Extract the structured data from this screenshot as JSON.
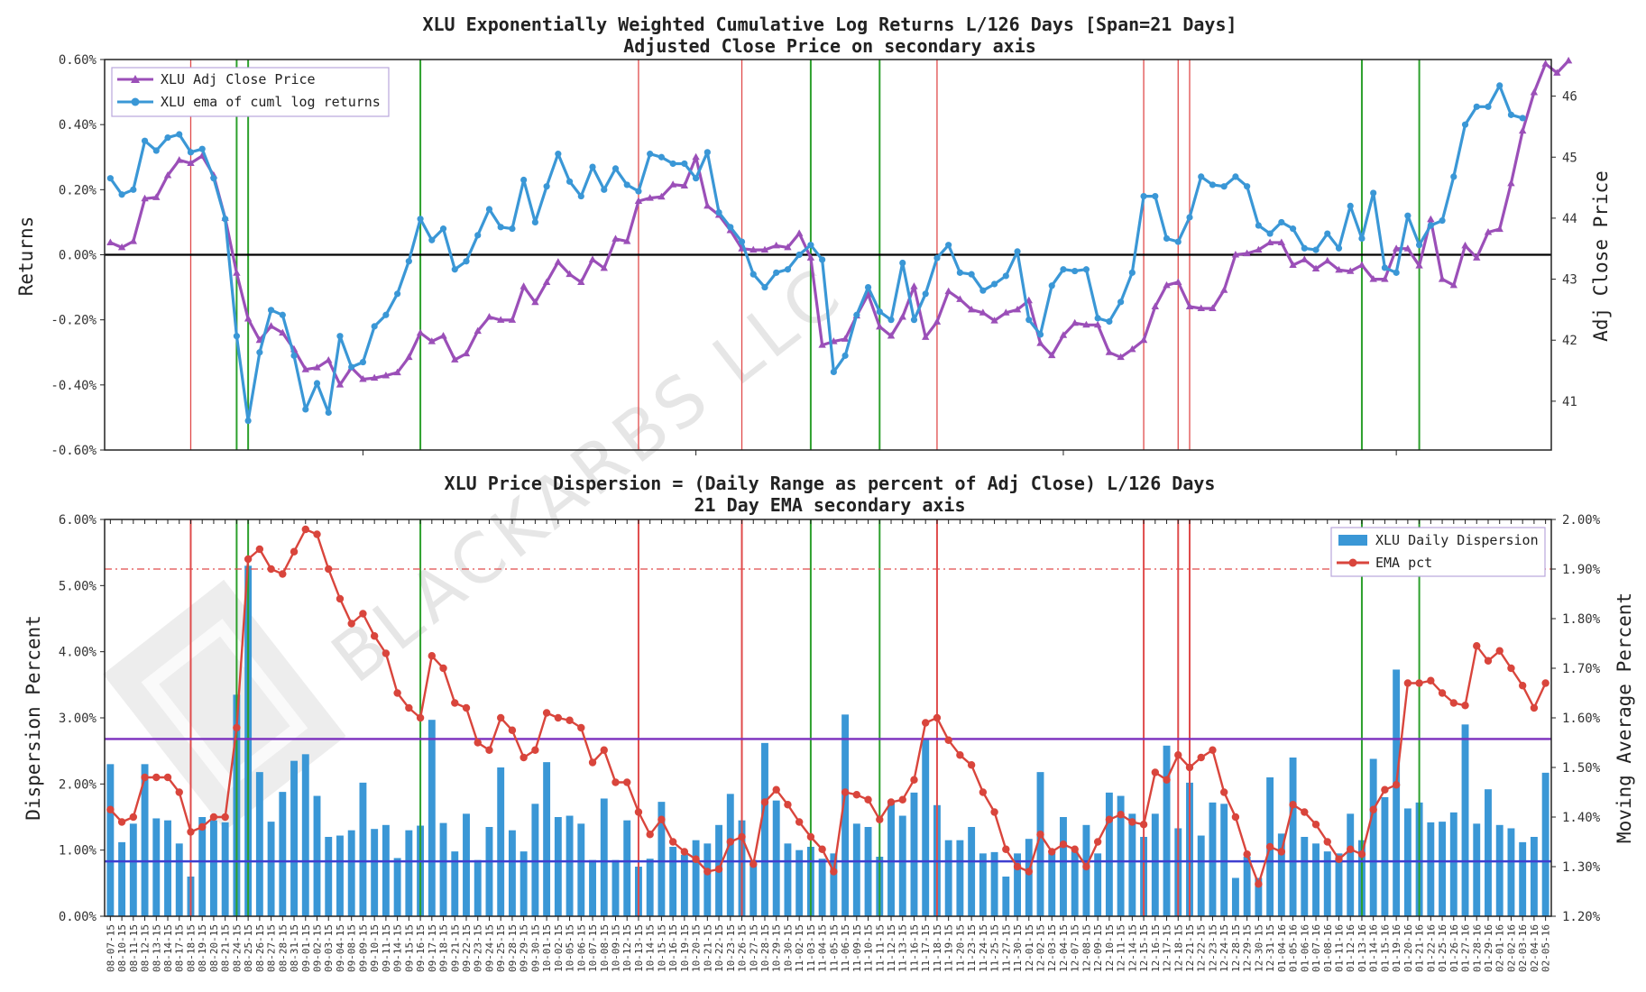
{
  "chart_data": [
    {
      "type": "line",
      "title": "XLU Exponentially Weighted Cumulative Log Returns L/126 Days [Span=21 Days]",
      "subtitle": "Adjusted Close Price on secondary axis",
      "ylabel": "Returns",
      "ylabel_right": "Adj Close Price",
      "ylim": [
        -0.6,
        0.6
      ],
      "ylim_right": [
        40.2,
        46.6
      ],
      "yticks": [
        "0.60%",
        "0.40%",
        "0.20%",
        "0.00%",
        "-0.20%",
        "-0.40%",
        "-0.60%"
      ],
      "yticks_right": [
        "46",
        "45",
        "44",
        "43",
        "42",
        "41"
      ],
      "legend_position": "top-left",
      "series": [
        {
          "name": "XLU Adj Close Price",
          "color": "#9b4fb8",
          "marker": "triangle",
          "axis": "right",
          "values": [
            43.6,
            43.52,
            43.62,
            44.32,
            44.34,
            44.7,
            44.95,
            44.9,
            45.02,
            44.7,
            44.0,
            43.1,
            42.35,
            42.0,
            42.23,
            42.12,
            41.85,
            41.52,
            41.55,
            41.67,
            41.27,
            41.55,
            41.36,
            41.38,
            41.42,
            41.47,
            41.72,
            42.12,
            41.98,
            42.07,
            41.68,
            41.78,
            42.15,
            42.38,
            42.33,
            42.33,
            42.88,
            42.62,
            42.95,
            43.28,
            43.08,
            42.95,
            43.32,
            43.18,
            43.66,
            43.62,
            44.28,
            44.33,
            44.35,
            44.55,
            44.53,
            45.0,
            44.2,
            44.05,
            43.8,
            43.5,
            43.48,
            43.48,
            43.55,
            43.52,
            43.75,
            43.35,
            41.92,
            41.98,
            42.02,
            42.4,
            42.75,
            42.22,
            42.07,
            42.38,
            42.88,
            42.05,
            42.3,
            42.8,
            42.67,
            42.5,
            42.45,
            42.32,
            42.45,
            42.5,
            42.65,
            41.95,
            41.75,
            42.08,
            42.28,
            42.25,
            42.25,
            41.8,
            41.72,
            41.85,
            42.0,
            42.55,
            42.9,
            42.95,
            42.55,
            42.52,
            42.52,
            42.82,
            43.4,
            43.42,
            43.48,
            43.6,
            43.6,
            43.23,
            43.32,
            43.17,
            43.3,
            43.15,
            43.13,
            43.23,
            43.0,
            43.0,
            43.5,
            43.5,
            43.22,
            43.98,
            43.0,
            42.9,
            43.55,
            43.35,
            43.77,
            43.82,
            44.57,
            45.43,
            46.06,
            46.53,
            46.38,
            46.58
          ]
        },
        {
          "name": "XLU ema of cuml log returns",
          "color": "#3a97d6",
          "marker": "circle",
          "axis": "left",
          "values": [
            0.235,
            0.185,
            0.2,
            0.35,
            0.32,
            0.36,
            0.37,
            0.315,
            0.325,
            0.235,
            0.11,
            -0.25,
            -0.51,
            -0.3,
            -0.17,
            -0.185,
            -0.31,
            -0.475,
            -0.395,
            -0.485,
            -0.25,
            -0.345,
            -0.33,
            -0.22,
            -0.185,
            -0.12,
            -0.02,
            0.11,
            0.045,
            0.08,
            -0.045,
            -0.02,
            0.06,
            0.14,
            0.085,
            0.08,
            0.23,
            0.1,
            0.21,
            0.31,
            0.225,
            0.18,
            0.27,
            0.2,
            0.265,
            0.215,
            0.195,
            0.31,
            0.3,
            0.28,
            0.28,
            0.235,
            0.315,
            0.13,
            0.085,
            0.04,
            -0.06,
            -0.1,
            -0.055,
            -0.045,
            0.0,
            0.03,
            -0.015,
            -0.36,
            -0.31,
            -0.185,
            -0.1,
            -0.175,
            -0.2,
            -0.025,
            -0.2,
            -0.12,
            -0.01,
            0.03,
            -0.055,
            -0.06,
            -0.11,
            -0.09,
            -0.065,
            0.01,
            -0.2,
            -0.245,
            -0.095,
            -0.045,
            -0.05,
            -0.045,
            -0.195,
            -0.205,
            -0.145,
            -0.055,
            0.18,
            0.18,
            0.05,
            0.04,
            0.115,
            0.24,
            0.215,
            0.21,
            0.24,
            0.21,
            0.09,
            0.065,
            0.1,
            0.08,
            0.02,
            0.015,
            0.065,
            0.02,
            0.15,
            0.05,
            0.19,
            -0.04,
            -0.055,
            0.12,
            0.03,
            0.09,
            0.105,
            0.24,
            0.4,
            0.455,
            0.455,
            0.52,
            0.43,
            0.42
          ]
        }
      ],
      "hline": 0,
      "vlines": [
        {
          "color": "#e04b4b",
          "positions": [
            7,
            46,
            55,
            72,
            90,
            93,
            94
          ]
        },
        {
          "color": "#2ca02c",
          "positions": [
            11,
            12,
            27,
            61,
            67,
            109,
            114
          ]
        }
      ]
    },
    {
      "type": "bar",
      "title": "XLU Price Dispersion = (Daily Range as percent of Adj Close) L/126 Days",
      "subtitle": "21 Day EMA secondary axis",
      "ylabel": "Dispersion Percent",
      "ylabel_right": "Moving Average Percent",
      "ylim": [
        0,
        6
      ],
      "ylim_right": [
        1.2,
        2.0
      ],
      "yticks": [
        "6.00%",
        "5.00%",
        "4.00%",
        "3.00%",
        "2.00%",
        "1.00%",
        "0.00%"
      ],
      "yticks_right": [
        "2.00%",
        "1.90%",
        "1.80%",
        "1.70%",
        "1.60%",
        "1.50%",
        "1.40%",
        "1.30%",
        "1.20%"
      ],
      "legend_position": "top-right",
      "categories": [
        "08-07-15",
        "08-10-15",
        "08-11-15",
        "08-12-15",
        "08-13-15",
        "08-14-15",
        "08-17-15",
        "08-18-15",
        "08-19-15",
        "08-20-15",
        "08-21-15",
        "08-24-15",
        "08-25-15",
        "08-26-15",
        "08-27-15",
        "08-28-15",
        "08-31-15",
        "09-01-15",
        "09-02-15",
        "09-03-15",
        "09-04-15",
        "09-08-15",
        "09-09-15",
        "09-10-15",
        "09-11-15",
        "09-14-15",
        "09-15-15",
        "09-16-15",
        "09-17-15",
        "09-18-15",
        "09-21-15",
        "09-22-15",
        "09-23-15",
        "09-24-15",
        "09-25-15",
        "09-28-15",
        "09-29-15",
        "09-30-15",
        "10-01-15",
        "10-02-15",
        "10-05-15",
        "10-06-15",
        "10-07-15",
        "10-08-15",
        "10-09-15",
        "10-12-15",
        "10-13-15",
        "10-14-15",
        "10-15-15",
        "10-16-15",
        "10-19-15",
        "10-20-15",
        "10-21-15",
        "10-22-15",
        "10-23-15",
        "10-26-15",
        "10-27-15",
        "10-28-15",
        "10-29-15",
        "10-30-15",
        "11-02-15",
        "11-03-15",
        "11-04-15",
        "11-05-15",
        "11-06-15",
        "11-09-15",
        "11-10-15",
        "11-11-15",
        "11-12-15",
        "11-13-15",
        "11-16-15",
        "11-17-15",
        "11-18-15",
        "11-19-15",
        "11-20-15",
        "11-23-15",
        "11-24-15",
        "11-25-15",
        "11-27-15",
        "11-30-15",
        "12-01-15",
        "12-02-15",
        "12-03-15",
        "12-04-15",
        "12-07-15",
        "12-08-15",
        "12-09-15",
        "12-10-15",
        "12-11-15",
        "12-14-15",
        "12-15-15",
        "12-16-15",
        "12-17-15",
        "12-18-15",
        "12-21-15",
        "12-22-15",
        "12-23-15",
        "12-24-15",
        "12-28-15",
        "12-29-15",
        "12-30-15",
        "12-31-15",
        "01-04-16",
        "01-05-16",
        "01-06-16",
        "01-07-16",
        "01-08-16",
        "01-11-16",
        "01-12-16",
        "01-13-16",
        "01-14-16",
        "01-15-16",
        "01-19-16",
        "01-20-16",
        "01-21-16",
        "01-22-16",
        "01-25-16",
        "01-26-16",
        "01-27-16",
        "01-28-16",
        "01-29-16",
        "02-01-16",
        "02-02-16",
        "02-03-16",
        "02-04-16",
        "02-05-16"
      ],
      "series": [
        {
          "name": "XLU Daily Dispersion",
          "color": "#3a97d6",
          "axis": "left",
          "values": [
            2.3,
            1.12,
            1.4,
            2.3,
            1.48,
            1.45,
            1.1,
            0.6,
            1.5,
            1.45,
            1.42,
            3.35,
            5.3,
            2.18,
            1.43,
            1.88,
            2.35,
            2.45,
            1.82,
            1.2,
            1.22,
            1.3,
            2.02,
            1.32,
            1.38,
            0.88,
            1.3,
            1.37,
            2.97,
            1.41,
            0.98,
            1.55,
            0.85,
            1.35,
            2.25,
            1.3,
            0.98,
            1.7,
            2.33,
            1.5,
            1.52,
            1.4,
            0.85,
            1.78,
            0.85,
            1.45,
            0.75,
            0.87,
            1.73,
            1.05,
            0.93,
            1.15,
            1.1,
            1.38,
            1.85,
            1.45,
            0.85,
            2.62,
            1.75,
            1.1,
            1.0,
            1.05,
            0.87,
            0.95,
            3.05,
            1.4,
            1.35,
            0.9,
            1.75,
            1.52,
            1.87,
            2.68,
            1.68,
            1.15,
            1.15,
            1.35,
            0.95,
            0.97,
            0.6,
            0.95,
            1.17,
            2.18,
            0.95,
            1.5,
            0.98,
            1.38,
            0.95,
            1.87,
            1.82,
            1.55,
            1.2,
            1.55,
            2.58,
            1.33,
            2.02,
            1.22,
            1.72,
            1.7,
            0.58,
            0.9,
            0.58,
            2.1,
            1.25,
            2.4,
            1.2,
            1.1,
            0.98,
            0.95,
            1.55,
            1.15,
            2.38,
            1.8,
            3.73,
            1.63,
            1.72,
            1.42,
            1.43,
            1.57,
            2.9,
            1.4,
            1.92,
            1.38,
            1.33,
            1.12,
            1.2,
            2.17
          ]
        },
        {
          "name": "EMA pct",
          "color": "#d9453c",
          "marker": "circle",
          "axis": "right",
          "values": [
            1.415,
            1.39,
            1.4,
            1.48,
            1.48,
            1.48,
            1.45,
            1.37,
            1.38,
            1.4,
            1.4,
            1.58,
            1.92,
            1.94,
            1.9,
            1.89,
            1.935,
            1.98,
            1.97,
            1.9,
            1.84,
            1.79,
            1.81,
            1.765,
            1.73,
            1.65,
            1.62,
            1.6,
            1.725,
            1.7,
            1.63,
            1.62,
            1.55,
            1.535,
            1.6,
            1.575,
            1.52,
            1.535,
            1.61,
            1.6,
            1.595,
            1.58,
            1.51,
            1.535,
            1.47,
            1.47,
            1.41,
            1.365,
            1.395,
            1.35,
            1.33,
            1.315,
            1.29,
            1.295,
            1.35,
            1.36,
            1.305,
            1.43,
            1.455,
            1.425,
            1.39,
            1.36,
            1.335,
            1.29,
            1.45,
            1.445,
            1.435,
            1.395,
            1.43,
            1.435,
            1.475,
            1.59,
            1.6,
            1.555,
            1.525,
            1.505,
            1.45,
            1.41,
            1.335,
            1.3,
            1.29,
            1.365,
            1.33,
            1.345,
            1.335,
            1.3,
            1.35,
            1.395,
            1.405,
            1.39,
            1.385,
            1.49,
            1.475,
            1.525,
            1.5,
            1.52,
            1.535,
            1.45,
            1.4,
            1.325,
            1.265,
            1.34,
            1.33,
            1.425,
            1.41,
            1.385,
            1.35,
            1.315,
            1.335,
            1.325,
            1.415,
            1.455,
            1.465,
            1.67,
            1.67,
            1.675,
            1.65,
            1.63,
            1.625,
            1.745,
            1.715,
            1.735,
            1.7,
            1.665,
            1.62,
            1.67
          ]
        }
      ],
      "hlines": [
        {
          "value": 2.68,
          "color": "#7b2fbe",
          "style": "solid",
          "axis": "left"
        },
        {
          "value": 0.83,
          "color": "#3f3fd0",
          "style": "solid",
          "axis": "left"
        },
        {
          "value": 1.9,
          "color": "#e04b4b",
          "style": "dashdot",
          "axis": "right"
        }
      ],
      "vlines": [
        {
          "color": "#e04b4b",
          "positions": [
            7,
            46,
            55,
            72,
            90,
            93,
            94
          ]
        },
        {
          "color": "#2ca02c",
          "positions": [
            11,
            12,
            27,
            61,
            67,
            109,
            114
          ]
        }
      ]
    }
  ],
  "watermark": "BLACKARBS LLC"
}
